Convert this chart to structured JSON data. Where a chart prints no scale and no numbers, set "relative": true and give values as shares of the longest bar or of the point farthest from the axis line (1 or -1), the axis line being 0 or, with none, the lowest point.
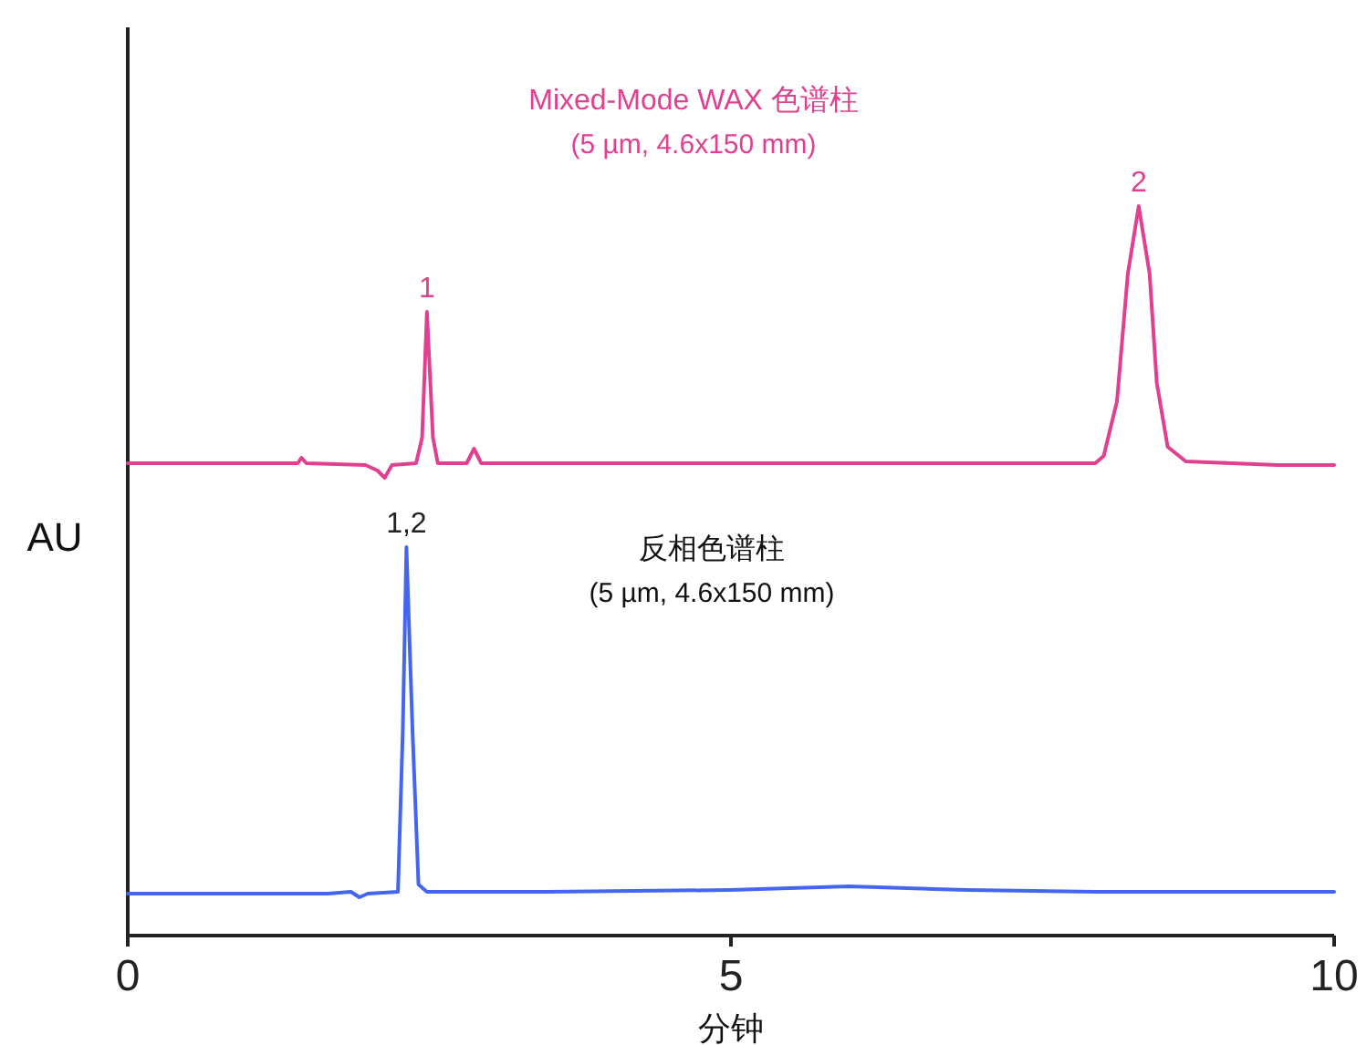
{
  "chart_data": {
    "type": "line",
    "relative": true,
    "xlabel": "分钟",
    "ylabel": "AU",
    "xlim": [
      0,
      10
    ],
    "xticks": [
      0,
      5,
      10
    ],
    "grid": false,
    "legend": false,
    "marker": "none",
    "line_style": "solid",
    "series": [
      {
        "name": "Mixed-Mode WAX 色谱柱",
        "color": "#e0408f",
        "x": [
          0,
          1.21,
          1.41,
          1.44,
          1.48,
          1.97,
          2.07,
          2.13,
          2.19,
          2.39,
          2.44,
          2.48,
          2.53,
          2.57,
          2.81,
          2.87,
          2.93,
          3.48,
          5.3,
          8.02,
          8.09,
          8.2,
          8.29,
          8.38,
          8.47,
          8.53,
          8.62,
          8.77,
          9.53,
          10
        ],
        "values": [
          0.6475,
          0.6475,
          0.6475,
          0.655,
          0.6475,
          0.645,
          0.6375,
          0.6275,
          0.645,
          0.6475,
          0.6825,
          0.855,
          0.6825,
          0.6475,
          0.6475,
          0.6675,
          0.6475,
          0.6475,
          0.6475,
          0.6475,
          0.6575,
          0.7325,
          0.9075,
          1.0,
          0.9075,
          0.7575,
          0.67,
          0.65,
          0.645,
          0.645
        ]
      },
      {
        "color": "#4466ee",
        "x": [
          0,
          1.66,
          1.85,
          1.92,
          1.99,
          2.24,
          2.28,
          2.31,
          2.36,
          2.41,
          2.48,
          3.48,
          4.99,
          5.98,
          6.96,
          8.02,
          10
        ],
        "values": [
          0.0575,
          0.0575,
          0.06,
          0.0525,
          0.0575,
          0.06,
          0.2825,
          0.5325,
          0.2825,
          0.07,
          0.06,
          0.06,
          0.0625,
          0.0675,
          0.0625,
          0.06,
          0.06
        ]
      }
    ],
    "annotations": [
      {
        "text": "1",
        "x": 2.48,
        "y": 0.855
      },
      {
        "text": "2",
        "x": 8.38,
        "y": 1.0
      },
      {
        "text": "1,2",
        "x": 2.31,
        "y": 0.5325
      },
      "(5 µm, 4.6x150 mm)",
      "反相色谱柱",
      "(5 µm, 4.6x150 mm)"
    ]
  }
}
